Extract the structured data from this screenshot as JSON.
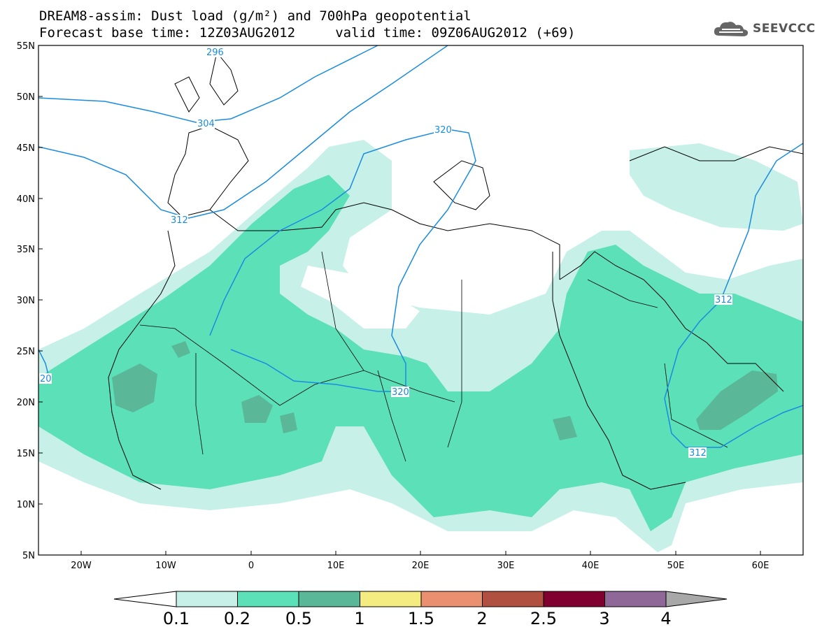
{
  "title": {
    "line1": "DREAM8-assim: Dust load (g/m²) and 700hPa geopotential",
    "line2": "Forecast base time: 12Z03AUG2012     valid time: 09Z06AUG2012 (+69)"
  },
  "logo": {
    "text": "SEEVCCC",
    "icon": "cloud-icon"
  },
  "map": {
    "lon_range": [
      -25,
      65
    ],
    "lat_range": [
      5,
      55
    ],
    "lat_ticks": [
      "5N",
      "10N",
      "15N",
      "20N",
      "25N",
      "30N",
      "35N",
      "40N",
      "45N",
      "50N",
      "55N"
    ],
    "lon_ticks": [
      "20W",
      "10W",
      "0",
      "10E",
      "20E",
      "30E",
      "40E",
      "50E",
      "60E"
    ],
    "contour_color": "#1a8ce0",
    "contour_labels": [
      "296",
      "304",
      "312",
      "320",
      "312",
      "312",
      "20",
      "320"
    ]
  },
  "colorbar": {
    "levels": [
      "0.1",
      "0.2",
      "0.5",
      "1",
      "1.5",
      "2",
      "2.5",
      "3",
      "4"
    ],
    "colors": [
      "#c6f0e8",
      "#5ce0b8",
      "#5ab898",
      "#f4ec80",
      "#ea9070",
      "#b05040",
      "#800030",
      "#906898"
    ],
    "under_color": "#ffffff",
    "over_color": "#a8a8a8"
  }
}
